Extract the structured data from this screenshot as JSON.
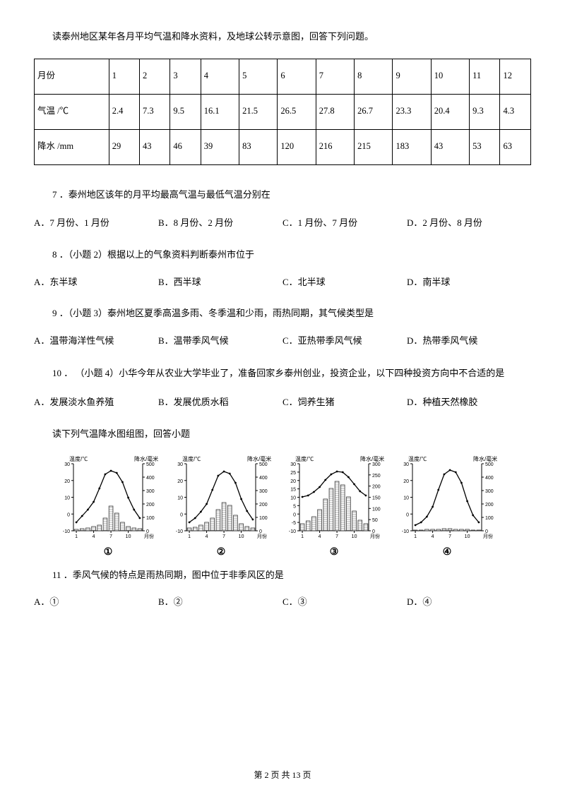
{
  "intro1": "读泰州地区某年各月平均气温和降水资料，及地球公转示意图，回答下列问题。",
  "table": {
    "row_headers": [
      "月份",
      "气温\n/℃",
      "降水\n/mm"
    ],
    "months": [
      "1",
      "2",
      "3",
      "4",
      "5",
      "6",
      "7",
      "8",
      "9",
      "10",
      "11",
      "12"
    ],
    "temp": [
      "2.4",
      "7.3",
      "9.5",
      "16.1",
      "21.5",
      "26.5",
      "27.8",
      "26.7",
      "23.3",
      "20.4",
      "9.3",
      "4.3"
    ],
    "precip": [
      "29",
      "43",
      "46",
      "39",
      "83",
      "120",
      "216",
      "215",
      "183",
      "43",
      "53",
      "63"
    ]
  },
  "q7": {
    "text": "7 ．泰州地区该年的月平均最高气温与最低气温分别在",
    "opts": [
      "A．7 月份、1 月份",
      "B．8 月份、2 月份",
      "C．1 月份、7 月份",
      "D．2 月份、8 月份"
    ]
  },
  "q8": {
    "text": "8 ．（小题 2）根据以上的气象资料判断泰州市位于",
    "opts": [
      "A．东半球",
      "B．西半球",
      "C．北半球",
      "D．南半球"
    ]
  },
  "q9": {
    "text": "9 ．（小题 3）泰州地区夏季高温多雨、冬季温和少雨，雨热同期，其气候类型是",
    "opts": [
      "A．温带海洋性气候",
      "B．温带季风气候",
      "C．亚热带季风气候",
      "D．热带季风气候"
    ]
  },
  "q10": {
    "text": "10 ． （小题 4）小华今年从农业大学毕业了，准备回家乡泰州创业，投资企业，以下四种投资方向中不合适的是",
    "opts": [
      "A．发展淡水鱼养殖",
      "B．发展优质水稻",
      "C．饲养生猪",
      "D．种植天然橡胶"
    ]
  },
  "intro2": "读下列气温降水图组图，回答小题",
  "charts": {
    "labels": [
      "①",
      "②",
      "③",
      "④"
    ],
    "axisTop": "温度/℃",
    "axisRight": "降水/毫米",
    "xLabels": [
      "1",
      "4",
      "7",
      "10",
      "月份"
    ],
    "tempYLabels": [
      "30",
      "20",
      "10",
      "0",
      "-10"
    ],
    "precipYLabels": [
      "500",
      "400",
      "300",
      "200",
      "100",
      "0"
    ],
    "data": [
      {
        "tempY": [
          12,
          21,
          30,
          41,
          60,
          80,
          85,
          82,
          69,
          47,
          30,
          18
        ],
        "precipH": [
          2,
          3,
          4,
          6,
          8,
          18,
          35,
          25,
          12,
          6,
          4,
          3
        ],
        "precipLabels": [
          "500",
          "400",
          "300",
          "200",
          "100",
          "0"
        ]
      },
      {
        "tempY": [
          12,
          18,
          27,
          38,
          58,
          78,
          84,
          81,
          68,
          45,
          28,
          16
        ],
        "precipH": [
          4,
          5,
          8,
          12,
          18,
          30,
          40,
          36,
          22,
          10,
          6,
          4
        ],
        "precipLabels": [
          "500",
          "400",
          "300",
          "200",
          "100",
          "0"
        ]
      },
      {
        "tempY": [
          48,
          50,
          55,
          62,
          72,
          80,
          84,
          83,
          76,
          66,
          56,
          50
        ],
        "precipH": [
          10,
          14,
          20,
          30,
          45,
          60,
          70,
          65,
          48,
          28,
          15,
          10
        ],
        "tempYLabels": [
          "30",
          "25",
          "20",
          "15",
          "10",
          "5",
          "0",
          "-5",
          "-10"
        ],
        "precipLabels": [
          "300",
          "250",
          "200",
          "150",
          "100",
          "50",
          "0"
        ]
      },
      {
        "tempY": [
          8,
          12,
          20,
          34,
          58,
          80,
          86,
          83,
          68,
          42,
          22,
          12
        ],
        "precipH": [
          1,
          1,
          2,
          2,
          2,
          3,
          3,
          2,
          2,
          2,
          1,
          1
        ],
        "precipLabels": [
          "500",
          "400",
          "300",
          "200",
          "100",
          "0"
        ]
      }
    ],
    "colors": {
      "line": "#000000",
      "bar": "#333333",
      "axis": "#000000",
      "text": "#000000",
      "bg": "#ffffff",
      "marker": "#000000"
    }
  },
  "q11": {
    "text": "11 ．季风气候的特点是雨热同期，图中位于非季风区的是",
    "opts": [
      "A．①",
      "B．②",
      "C．③",
      "D．④"
    ]
  },
  "footer": "第 2 页 共 13 页"
}
